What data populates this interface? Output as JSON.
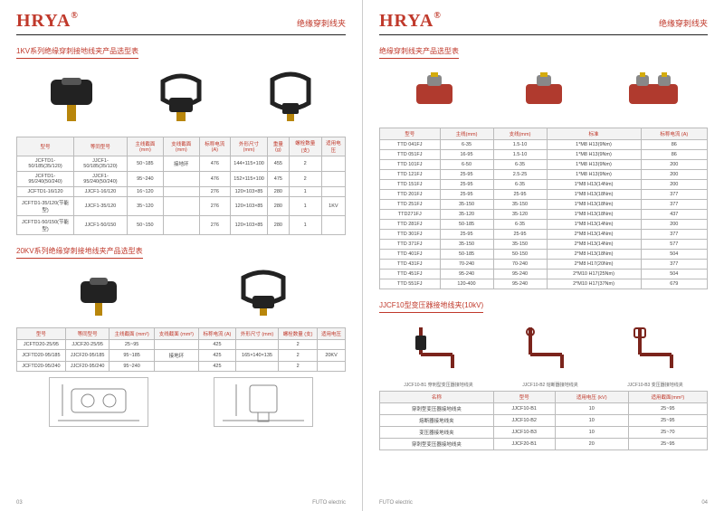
{
  "brand": "HRYA",
  "brand_mark": "®",
  "chapter": "绝缘穿刺线夹",
  "footer_brand": "FUTO electric",
  "left": {
    "page_no": "03",
    "section1_title": "1KV系列绝缘穿刺接地线夹产品选型表",
    "table1": {
      "headers": [
        "型号",
        "等同型号",
        "主线截面 (mm)",
        "支线截面 (mm)",
        "标称电流 (A)",
        "外形尺寸 (mm)",
        "重量 (g)",
        "螺栓数量 (支)",
        "适用电压"
      ],
      "rows": [
        [
          "JCFTD1-50/185(35/120)",
          "JJCF1-50/185(35/120)",
          "50~185",
          "接地环",
          "476",
          "144×115×100",
          "455",
          "2",
          ""
        ],
        [
          "JCFTD1-95/240(50/240)",
          "JJCF1-95/240(50/240)",
          "95~240",
          "",
          "476",
          "152×115×100",
          "475",
          "2",
          ""
        ],
        [
          "JCFTD1-16/120",
          "JJCF1-16/120",
          "16~120",
          "",
          "276",
          "120×103×85",
          "280",
          "1",
          ""
        ],
        [
          "JCFTD1-35/120(节能型)",
          "JJCF1-35/120",
          "35~120",
          "",
          "276",
          "120×103×85",
          "280",
          "1",
          "1KV"
        ],
        [
          "JCFTD1-50/150(节能型)",
          "JJCF1-50/150",
          "50~150",
          "",
          "276",
          "120×103×85",
          "280",
          "1",
          ""
        ]
      ]
    },
    "section2_title": "20KV系列绝缘穿刺接地线夹产品选型表",
    "table2": {
      "headers": [
        "型号",
        "等同型号",
        "主线截面 (mm²)",
        "支线截面 (mm²)",
        "标称电流 (A)",
        "外形尺寸 (mm)",
        "螺栓数量 (支)",
        "适用电压"
      ],
      "rows": [
        [
          "JCFTD20-25/95",
          "JJCF20-25/95",
          "25~95",
          "",
          "425",
          "",
          "2",
          ""
        ],
        [
          "JCFTD20-95/185",
          "JJCF20-95/185",
          "95~185",
          "接地环",
          "425",
          "165×140×135",
          "2",
          "20KV"
        ],
        [
          "JCFTD20-95/240",
          "JJCF20-95/240",
          "95~240",
          "",
          "425",
          "",
          "2",
          ""
        ]
      ]
    }
  },
  "right": {
    "page_no": "04",
    "section1_title": "绝缘穿刺线夹产品选型表",
    "table1": {
      "headers": [
        "型号",
        "主线(mm)",
        "支线(mm)",
        "标准",
        "标称电流 (A)"
      ],
      "rows": [
        [
          "TTD 041FJ",
          "6-35",
          "1.5-10",
          "1*M8 H13(9Nm)",
          "86"
        ],
        [
          "TTD 051FJ",
          "16-95",
          "1.5-10",
          "1*M8 H13(9Nm)",
          "86"
        ],
        [
          "TTD 101FJ",
          "6-50",
          "6-35",
          "1*M8 H13(9Nm)",
          "200"
        ],
        [
          "TTD 121FJ",
          "25-95",
          "2.5-25",
          "1*M8 H13(9Nm)",
          "200"
        ],
        [
          "TTD 151FJ",
          "25-95",
          "6-35",
          "1*M8 H13(14Nm)",
          "200"
        ],
        [
          "TTD 201FJ",
          "25-95",
          "25-95",
          "1*M8 H13(18Nm)",
          "377"
        ],
        [
          "TTD 251FJ",
          "35-150",
          "35-150",
          "1*M8 H13(18Nm)",
          "377"
        ],
        [
          "TTD271FJ",
          "35-120",
          "35-120",
          "1*M8 H13(18Nm)",
          "437"
        ],
        [
          "TTD 281FJ",
          "50-185",
          "6-35",
          "1*M8 H13(14Nm)",
          "200"
        ],
        [
          "TTD 301FJ",
          "25-95",
          "25-95",
          "2*M8 H13(14Nm)",
          "377"
        ],
        [
          "TTD 371FJ",
          "35-150",
          "35-150",
          "2*M8 H13(14Nm)",
          "577"
        ],
        [
          "TTD 401FJ",
          "50-185",
          "50-150",
          "2*M8 H13(18Nm)",
          "504"
        ],
        [
          "TTD 431FJ",
          "70-240",
          "70-240",
          "2*M8 H17(20Nm)",
          "377"
        ],
        [
          "TTD 451FJ",
          "95-240",
          "95-240",
          "2*M10 H17(25Nm)",
          "504"
        ],
        [
          "TTD 551FJ",
          "120-400",
          "95-240",
          "2*M10 H17(37Nm)",
          "679"
        ]
      ]
    },
    "section2_title": "JJCF10型变压器接地线夹(10kV)",
    "sub_labels": [
      "JJCF10-B1 穿刺型变压器接地线夹",
      "JJCF10-B2 熔断器接地线夹",
      "JJCF10-B3 变压器接地线夹"
    ],
    "table2": {
      "headers": [
        "名称",
        "型号",
        "适用电压 (kV)",
        "适用截面(mm²)"
      ],
      "rows": [
        [
          "穿刺型变压器接地线夹",
          "JJCF10-B1",
          "10",
          "25~95"
        ],
        [
          "熔断器接地线夹",
          "JJCF10-B2",
          "10",
          "25~95"
        ],
        [
          "变压器接地线夹",
          "JJCF10-B3",
          "10",
          "25~70"
        ],
        [
          "穿刺型变压器接地线夹",
          "JJCF20-B1",
          "20",
          "25~95"
        ]
      ]
    }
  }
}
